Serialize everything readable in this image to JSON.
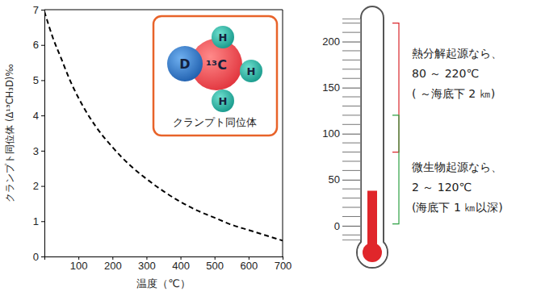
{
  "chart_data": [
    {
      "type": "line",
      "x_label": "温度（℃）",
      "y_label": "クランプト同位体 (Δ¹³CH₃D)‰",
      "x": [
        0,
        25,
        50,
        75,
        100,
        150,
        200,
        250,
        300,
        350,
        400,
        450,
        500,
        550,
        600,
        650,
        700
      ],
      "series": [
        {
          "values": [
            6.95,
            6.2,
            5.6,
            5.0,
            4.5,
            3.7,
            3.1,
            2.6,
            2.2,
            1.85,
            1.55,
            1.3,
            1.1,
            0.9,
            0.75,
            0.6,
            0.45
          ],
          "color": "#000000",
          "line_style": "dashed"
        }
      ],
      "xlim": [
        0,
        700
      ],
      "xticks": [
        100,
        200,
        300,
        400,
        500,
        600,
        700
      ],
      "ylim": [
        0,
        7
      ],
      "yticks": [
        0,
        1,
        2,
        3,
        4,
        5,
        6,
        7
      ],
      "inset": {
        "label": "クランプト同位体",
        "atoms": [
          "D",
          "¹³C",
          "H",
          "H",
          "H"
        ]
      }
    },
    {
      "type": "thermometer",
      "values": [
        38
      ],
      "color": "#e0262b",
      "ylim": [
        -15,
        225
      ],
      "yticks": [
        0,
        50,
        100,
        150,
        200
      ],
      "minor_ticks": [
        -10,
        10,
        20,
        30,
        40,
        60,
        70,
        80,
        90,
        110,
        120,
        130,
        140,
        160,
        170,
        180,
        190,
        210,
        220
      ],
      "annotations": [
        {
          "lines": [
            "熱分解起源なら、",
            "80 ～ 220℃",
            "( ～海底下 2 ㎞)"
          ],
          "range": [
            80,
            220
          ],
          "color": "#d9262b"
        },
        {
          "lines": [
            "微生物起源なら、",
            "2 ～ 120℃",
            "(海底下 1 ㎞以深)"
          ],
          "range": [
            2,
            120
          ],
          "color": "#2ea043"
        }
      ]
    }
  ]
}
